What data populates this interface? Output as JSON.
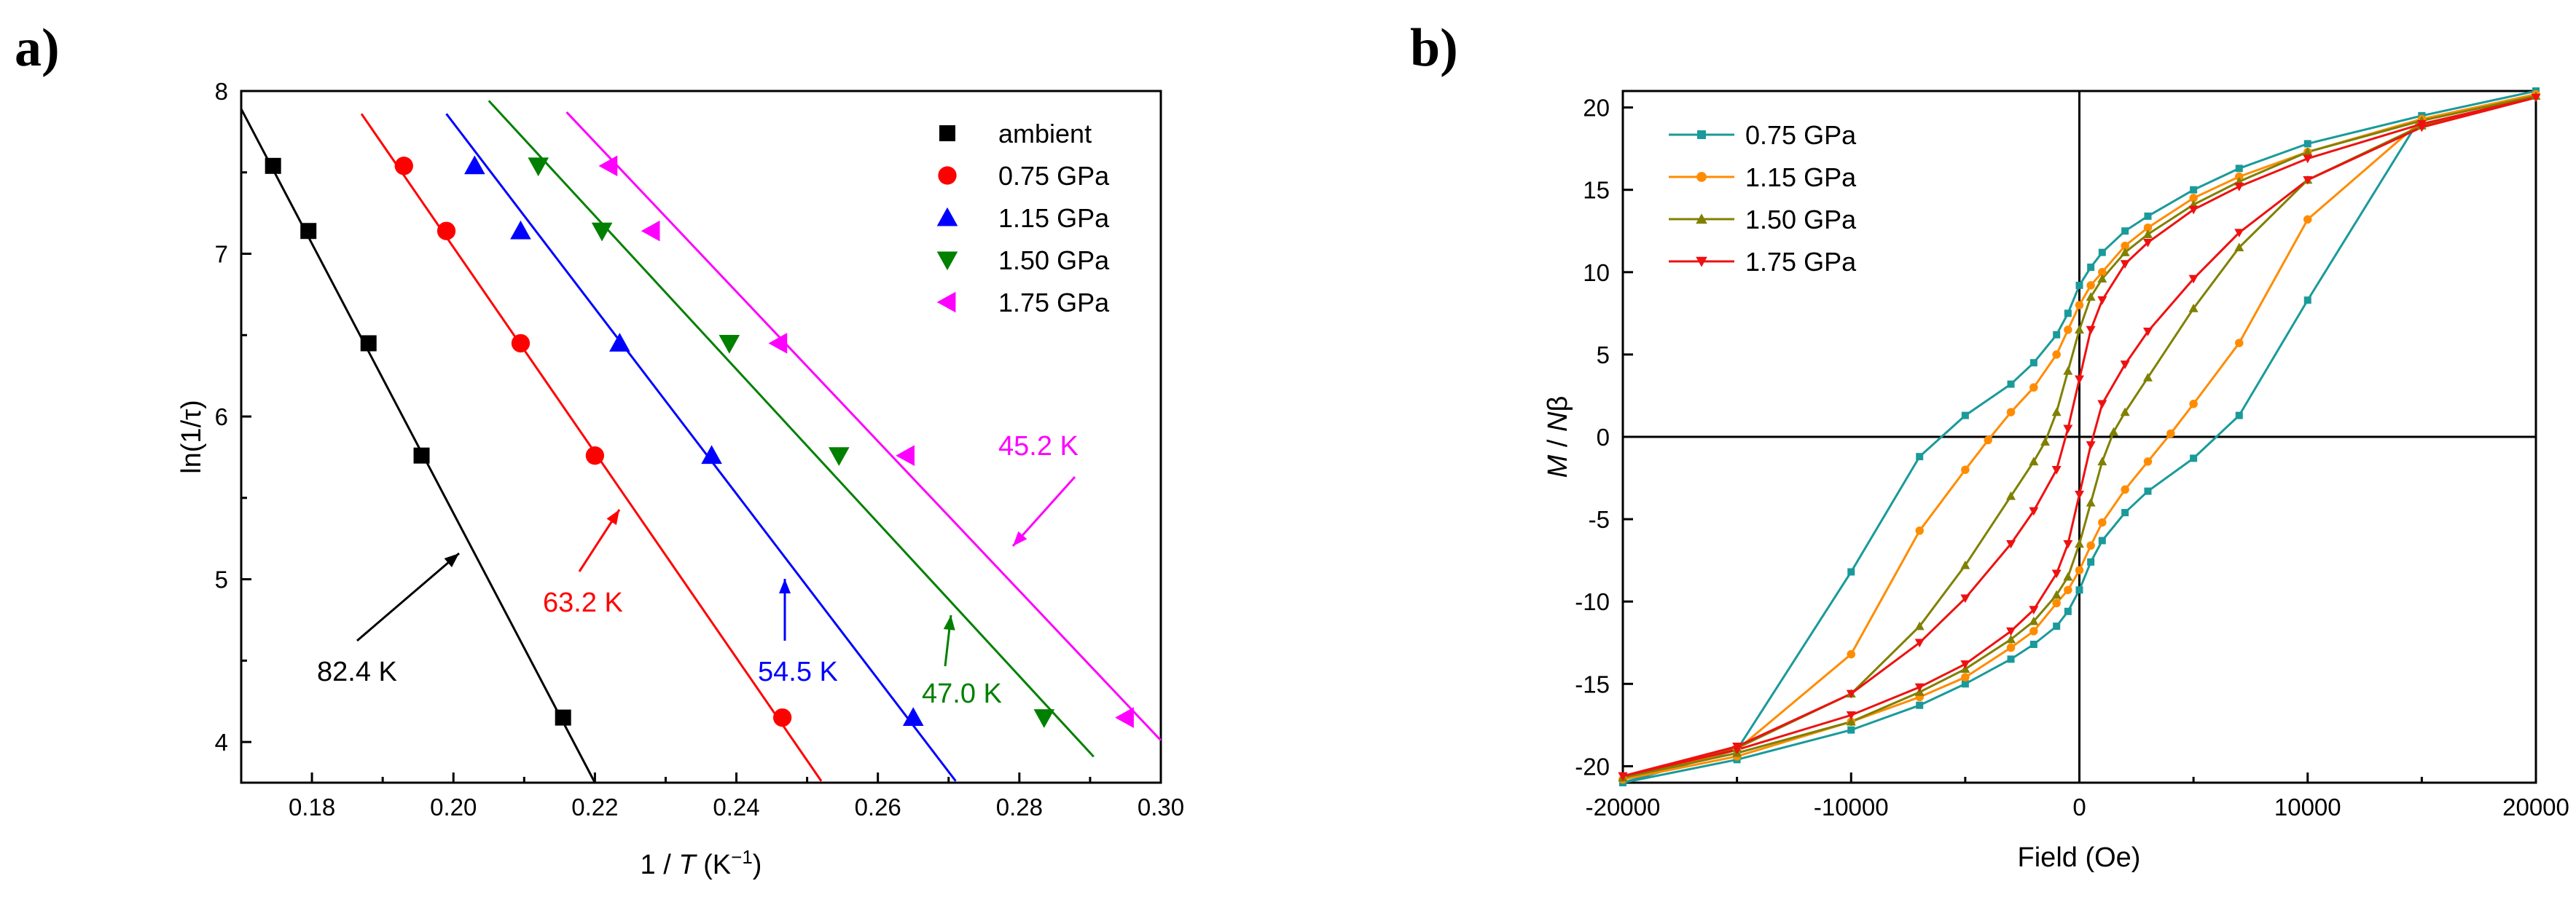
{
  "chart_data": [
    {
      "type": "scatter",
      "panel_label": "a)",
      "xlabel_prefix": "1 / ",
      "xlabel_var": "T",
      "xlabel_unit": " (K",
      "xlabel_sup": "−1",
      "xlabel_close": ")",
      "ylabel": "ln(1/τ)",
      "xlim": [
        0.17,
        0.3
      ],
      "ylim": [
        3.75,
        8.0
      ],
      "xticks": [
        "0.18",
        "0.20",
        "0.22",
        "0.24",
        "0.26",
        "0.28",
        "0.30"
      ],
      "xtick_values": [
        0.18,
        0.2,
        0.22,
        0.24,
        0.26,
        0.28,
        0.3
      ],
      "yticks": [
        "4",
        "5",
        "6",
        "7",
        "8"
      ],
      "ytick_values": [
        4,
        5,
        6,
        7,
        8
      ],
      "legend_position": "top-right",
      "series": [
        {
          "name": "ambient",
          "color": "#000000",
          "marker": "square",
          "x": [
            0.1745,
            0.1795,
            0.188,
            0.1955,
            0.2155
          ],
          "y": [
            7.54,
            7.14,
            6.45,
            5.76,
            4.15
          ],
          "fit": {
            "x": [
              0.17,
              0.22
            ],
            "y": [
              7.89,
              3.75
            ]
          },
          "annotation": "82.4 K"
        },
        {
          "name": "0.75 GPa",
          "color": "#ff0000",
          "marker": "circle",
          "x": [
            0.193,
            0.199,
            0.2095,
            0.22,
            0.2465
          ],
          "y": [
            7.54,
            7.14,
            6.45,
            5.76,
            4.15
          ],
          "fit": {
            "x": [
              0.187,
              0.252
            ],
            "y": [
              7.86,
              3.76
            ]
          },
          "annotation": "63.2 K"
        },
        {
          "name": "1.15 GPa",
          "color": "#0000ff",
          "marker": "triangle-up",
          "x": [
            0.203,
            0.2095,
            0.2235,
            0.2365,
            0.265
          ],
          "y": [
            7.54,
            7.14,
            6.45,
            5.76,
            4.15
          ],
          "fit": {
            "x": [
              0.199,
              0.271
            ],
            "y": [
              7.86,
              3.76
            ]
          },
          "annotation": "54.5 K"
        },
        {
          "name": "1.50 GPa",
          "color": "#008000",
          "marker": "triangle-down",
          "x": [
            0.212,
            0.221,
            0.239,
            0.2545,
            0.2835
          ],
          "y": [
            7.54,
            7.14,
            6.45,
            5.76,
            4.15
          ],
          "fit": {
            "x": [
              0.205,
              0.2905
            ],
            "y": [
              7.94,
              3.91
            ]
          },
          "annotation": "47.0 K"
        },
        {
          "name": "1.75 GPa",
          "color": "#ff00ff",
          "marker": "triangle-left",
          "x": [
            0.222,
            0.228,
            0.246,
            0.264,
            0.295
          ],
          "y": [
            7.54,
            7.14,
            6.45,
            5.76,
            4.15
          ],
          "fit": {
            "x": [
              0.216,
              0.3
            ],
            "y": [
              7.87,
              4.01
            ]
          },
          "annotation": "45.2 K"
        }
      ]
    },
    {
      "type": "line",
      "panel_label": "b)",
      "xlabel": "Field (Oe)",
      "ylabel_M": "M",
      "ylabel_mid": " / ",
      "ylabel_N": "N",
      "ylabel_beta": "β",
      "xlim": [
        -20000,
        20000
      ],
      "ylim": [
        -21,
        21
      ],
      "xticks": [
        "-20000",
        "-10000",
        "0",
        "10000",
        "20000"
      ],
      "xtick_values": [
        -20000,
        -10000,
        0,
        10000,
        20000
      ],
      "yticks": [
        "-20",
        "-15",
        "-10",
        "-5",
        "0",
        "5",
        "10",
        "15",
        "20"
      ],
      "ytick_values": [
        -20,
        -15,
        -10,
        -5,
        0,
        5,
        10,
        15,
        20
      ],
      "legend_position": "top-left",
      "series": [
        {
          "name": "0.75 GPa",
          "color": "#1a9a9a",
          "marker": "square",
          "x": [
            -20000,
            -15000,
            -10000,
            -7000,
            -5000,
            -3000,
            -2000,
            -1000,
            -500,
            0,
            500,
            1000,
            2000,
            3000,
            5000,
            7000,
            10000,
            15000,
            20000,
            15000,
            10000,
            7000,
            5000,
            3000,
            2000,
            1000,
            500,
            0,
            -500,
            -1000,
            -2000,
            -3000,
            -5000,
            -7000,
            -10000,
            -15000,
            -20000
          ],
          "y": [
            -21,
            -19,
            -8.2,
            -1.2,
            1.3,
            3.2,
            4.5,
            6.2,
            7.5,
            9.2,
            10.3,
            11.2,
            12.5,
            13.4,
            15,
            16.3,
            17.8,
            19.5,
            21,
            19.5,
            8.3,
            1.3,
            -1.3,
            -3.3,
            -4.6,
            -6.3,
            -7.6,
            -9.3,
            -10.6,
            -11.5,
            -12.6,
            -13.5,
            -15,
            -16.3,
            -17.8,
            -19.6,
            -21
          ]
        },
        {
          "name": "1.15 GPa",
          "color": "#ff8c00",
          "marker": "circle",
          "x": [
            -20000,
            -15000,
            -10000,
            -7000,
            -5000,
            -4000,
            -3000,
            -2000,
            -1000,
            -500,
            0,
            500,
            1000,
            2000,
            3000,
            5000,
            7000,
            10000,
            15000,
            20000,
            15000,
            10000,
            7000,
            5000,
            4000,
            3000,
            2000,
            1000,
            500,
            0,
            -500,
            -1000,
            -2000,
            -3000,
            -5000,
            -7000,
            -10000,
            -15000,
            -20000
          ],
          "y": [
            -20.8,
            -19,
            -13.2,
            -5.7,
            -2,
            -0.2,
            1.5,
            3,
            5,
            6.5,
            8,
            9.2,
            10,
            11.6,
            12.7,
            14.5,
            15.8,
            17.3,
            19.3,
            20.8,
            19.2,
            13.2,
            5.7,
            2,
            0.2,
            -1.5,
            -3.2,
            -5.2,
            -6.6,
            -8.1,
            -9.3,
            -10.1,
            -11.8,
            -12.8,
            -14.6,
            -15.8,
            -17.3,
            -19.4,
            -20.8
          ]
        },
        {
          "name": "1.50 GPa",
          "color": "#808000",
          "marker": "triangle-up",
          "x": [
            -20000,
            -15000,
            -10000,
            -7000,
            -5000,
            -3000,
            -2000,
            -1500,
            -1000,
            -500,
            0,
            500,
            1000,
            2000,
            3000,
            5000,
            7000,
            10000,
            15000,
            20000,
            15000,
            10000,
            7000,
            5000,
            3000,
            2000,
            1500,
            1000,
            500,
            0,
            -500,
            -1000,
            -2000,
            -3000,
            -5000,
            -7000,
            -10000,
            -15000,
            -20000
          ],
          "y": [
            -20.7,
            -18.9,
            -15.6,
            -11.5,
            -7.8,
            -3.6,
            -1.5,
            -0.3,
            1.5,
            4,
            6.5,
            8.5,
            9.6,
            11.2,
            12.3,
            14.1,
            15.5,
            17.3,
            19.2,
            20.7,
            18.9,
            15.6,
            11.5,
            7.8,
            3.6,
            1.5,
            0.3,
            -1.5,
            -4,
            -6.5,
            -8.5,
            -9.6,
            -11.2,
            -12.3,
            -14.1,
            -15.5,
            -17.3,
            -19.2,
            -20.7
          ]
        },
        {
          "name": "1.75 GPa",
          "color": "#ee1111",
          "marker": "triangle-down",
          "x": [
            -20000,
            -15000,
            -10000,
            -7000,
            -5000,
            -3000,
            -2000,
            -1000,
            -500,
            0,
            500,
            1000,
            2000,
            3000,
            5000,
            7000,
            10000,
            15000,
            20000,
            15000,
            10000,
            7000,
            5000,
            3000,
            2000,
            1000,
            500,
            0,
            -500,
            -1000,
            -2000,
            -3000,
            -5000,
            -7000,
            -10000,
            -15000,
            -20000
          ],
          "y": [
            -20.6,
            -18.8,
            -15.6,
            -12.5,
            -9.8,
            -6.5,
            -4.5,
            -2,
            0.5,
            3.5,
            6.5,
            8.3,
            10.5,
            11.8,
            13.8,
            15.2,
            16.9,
            19,
            20.6,
            18.8,
            15.6,
            12.4,
            9.6,
            6.4,
            4.4,
            2,
            -0.5,
            -3.5,
            -6.5,
            -8.3,
            -10.5,
            -11.8,
            -13.8,
            -15.2,
            -16.9,
            -19,
            -20.6
          ]
        }
      ]
    }
  ]
}
